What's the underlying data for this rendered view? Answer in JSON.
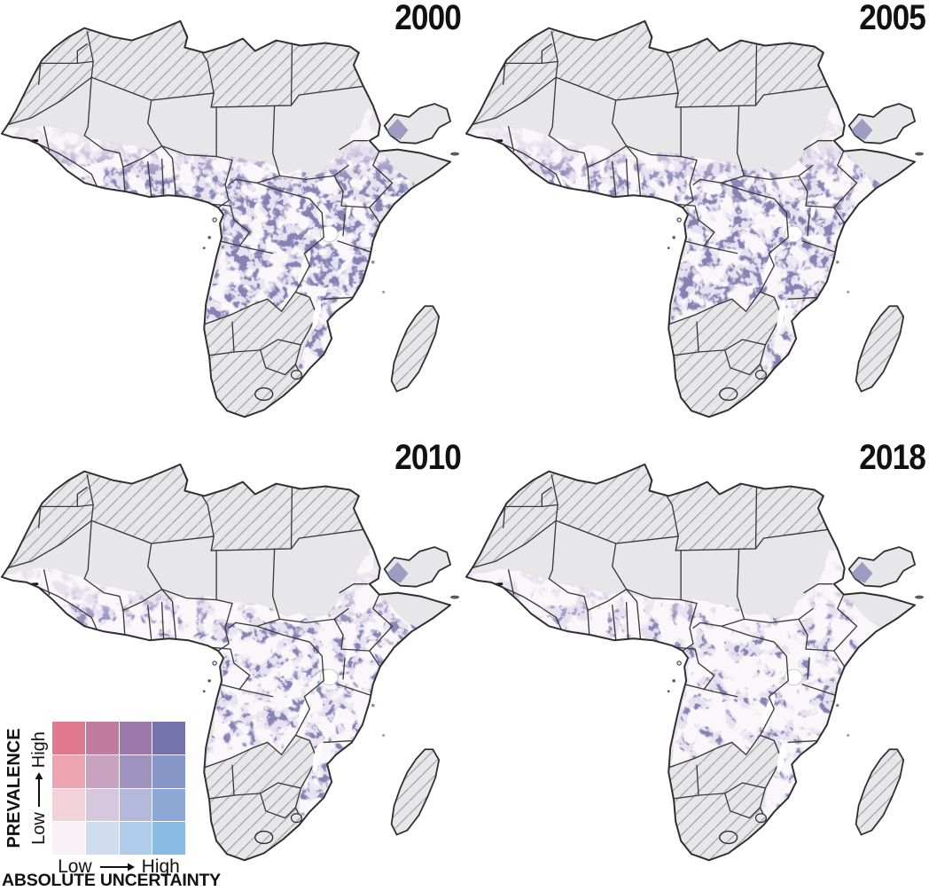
{
  "figure": {
    "background": "#ffffff",
    "description_visible_text_only": true
  },
  "panels": [
    {
      "year": "2000"
    },
    {
      "year": "2005"
    },
    {
      "year": "2010"
    },
    {
      "year": "2018"
    }
  ],
  "legend": {
    "y_title": "PREVALENCE",
    "y_scale_low": "Low",
    "y_scale_high": "High",
    "x_scale_low": "Low",
    "x_scale_high": "High",
    "x_title": "ABSOLUTE UNCERTAINTY",
    "grid_rows_top_to_bottom": [
      [
        "#e27a8d",
        "#c07b9e",
        "#9b7aab",
        "#7473ac"
      ],
      [
        "#eca4b3",
        "#c8a3c0",
        "#9f94c0",
        "#8795c7"
      ],
      [
        "#f3d1d9",
        "#d5c8de",
        "#b4b9db",
        "#8da7d5"
      ],
      [
        "#f9f1f5",
        "#cfdcee",
        "#afccea",
        "#89bce4"
      ]
    ]
  },
  "map_colors": {
    "high_prevalence_fill": "#8583b4",
    "mid_pale_fill": "#ccc2de",
    "lowest_pale_fill": "#f4eef4",
    "no_data_grey": "#e7e6e8",
    "hatch_line": "#a3a3a3",
    "country_border": "#3b3b3b",
    "coastline": "#2f2f2f",
    "water": "#ffffff",
    "year_label_color": "#111111"
  }
}
